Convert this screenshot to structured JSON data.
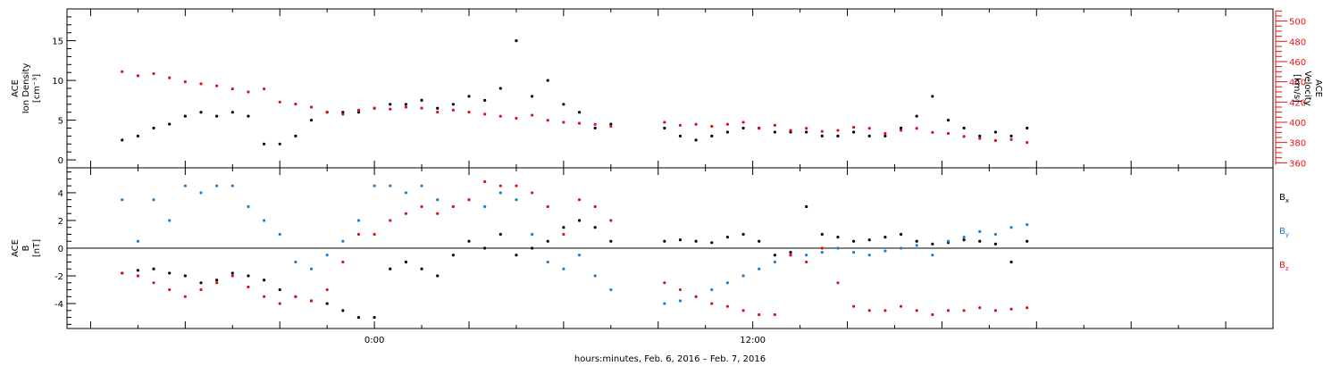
{
  "xaxis": {
    "label": "hours:minutes, Feb.  6, 2016 – Feb.  7, 2016",
    "tick_labels": [
      {
        "hour": 0,
        "text": "0:00"
      },
      {
        "hour": 12,
        "text": "12:00"
      }
    ]
  },
  "chart_data": [
    {
      "type": "scatter",
      "panel": "top",
      "left_axis": {
        "label_lines": [
          "ACE",
          "Ion Density",
          "[cm⁻³]"
        ],
        "ylim": [
          -1,
          19
        ],
        "ticks": [
          0,
          5,
          10,
          15
        ]
      },
      "right_axis": {
        "label_lines": [
          "ACE",
          "Velocity",
          "[km/s]"
        ],
        "ylim": [
          355,
          512
        ],
        "ticks": [
          360,
          380,
          400,
          420,
          440,
          460,
          480,
          500
        ],
        "color": "#e11111"
      },
      "series": [
        {
          "id": "density",
          "color": "#000000",
          "axis": "left",
          "x": [
            -8.0,
            -7.5,
            -7.0,
            -6.5,
            -6.0,
            -5.5,
            -5.0,
            -4.5,
            -4.0,
            -3.5,
            -3.0,
            -2.5,
            -2.0,
            -1.5,
            -1.0,
            -0.5,
            0.0,
            0.5,
            1.0,
            1.5,
            2.0,
            2.5,
            3.0,
            3.5,
            4.0,
            4.5,
            5.0,
            5.5,
            6.0,
            6.5,
            7.0,
            7.5,
            9.2,
            9.7,
            10.2,
            10.7,
            11.2,
            11.7,
            12.2,
            12.7,
            13.2,
            13.7,
            14.2,
            14.7,
            15.2,
            15.7,
            16.2,
            16.7,
            17.2,
            17.7,
            18.2,
            18.7,
            19.2,
            19.7,
            20.2,
            20.7
          ],
          "y": [
            2.5,
            3.0,
            4.0,
            4.5,
            5.5,
            6.0,
            5.5,
            6.0,
            5.5,
            2.0,
            2.0,
            3.0,
            5.0,
            6.0,
            6.0,
            6.0,
            6.5,
            7.0,
            7.0,
            7.5,
            6.5,
            7.0,
            8.0,
            7.5,
            9.0,
            15.0,
            8.0,
            10.0,
            7.0,
            6.0,
            4.0,
            4.5,
            4.0,
            3.0,
            2.5,
            3.0,
            3.5,
            4.0,
            4.0,
            3.5,
            3.5,
            3.5,
            3.0,
            3.0,
            3.5,
            3.0,
            3.0,
            4.0,
            5.5,
            8.0,
            5.0,
            4.0,
            3.0,
            3.5,
            3.0,
            4.0
          ]
        },
        {
          "id": "velocity",
          "color": "#e11111",
          "axis": "right",
          "x": [
            -8.0,
            -7.5,
            -7.0,
            -6.5,
            -6.0,
            -5.5,
            -5.0,
            -4.5,
            -4.0,
            -3.5,
            -3.0,
            -2.5,
            -2.0,
            -1.5,
            -1.0,
            -0.5,
            0.0,
            0.5,
            1.0,
            1.5,
            2.0,
            2.5,
            3.0,
            3.5,
            4.0,
            4.5,
            5.0,
            5.5,
            6.0,
            6.5,
            7.0,
            7.5,
            9.2,
            9.7,
            10.2,
            10.7,
            11.2,
            11.7,
            12.2,
            12.7,
            13.2,
            13.7,
            14.2,
            14.7,
            15.2,
            15.7,
            16.2,
            16.7,
            17.2,
            17.7,
            18.2,
            18.7,
            19.2,
            19.7,
            20.2,
            20.7
          ],
          "y": [
            450,
            446,
            448,
            444,
            440,
            438,
            436,
            433,
            430,
            433,
            420,
            418,
            415,
            410,
            408,
            412,
            414,
            413,
            415,
            414,
            410,
            412,
            410,
            408,
            406,
            404,
            407,
            402,
            400,
            399,
            398,
            396,
            400,
            397,
            398,
            396,
            398,
            400,
            394,
            397,
            392,
            394,
            391,
            392,
            395,
            394,
            389,
            392,
            394,
            390,
            389,
            386,
            384,
            382,
            383,
            380
          ]
        }
      ]
    },
    {
      "type": "scatter",
      "panel": "bottom",
      "left_axis": {
        "label_lines": [
          "ACE",
          "B",
          "[nT]"
        ],
        "ylim": [
          -5.8,
          5.8
        ],
        "ticks": [
          -4,
          -2,
          0,
          2,
          4
        ]
      },
      "legend": {
        "placement": "right",
        "entries": [
          {
            "name": "B",
            "sub": "x",
            "color": "#000000"
          },
          {
            "name": "B",
            "sub": "y",
            "color": "#1a7fd4"
          },
          {
            "name": "B",
            "sub": "z",
            "color": "#e11111"
          }
        ]
      },
      "series": [
        {
          "id": "bx",
          "color": "#000000",
          "x": [
            -8.0,
            -7.5,
            -7.0,
            -6.5,
            -6.0,
            -5.5,
            -5.0,
            -4.5,
            -4.0,
            -3.5,
            -3.0,
            -2.5,
            -2.0,
            -1.5,
            -1.0,
            -0.5,
            0.0,
            0.5,
            1.0,
            1.5,
            2.0,
            2.5,
            3.0,
            3.5,
            4.0,
            4.5,
            5.0,
            5.5,
            6.0,
            6.5,
            7.0,
            7.5,
            9.2,
            9.7,
            10.2,
            10.7,
            11.2,
            11.7,
            12.2,
            12.7,
            13.2,
            13.7,
            14.2,
            14.7,
            15.2,
            15.7,
            16.2,
            16.7,
            17.2,
            17.7,
            18.2,
            18.7,
            19.2,
            19.7,
            20.2,
            20.7
          ],
          "y": [
            -1.8,
            -1.6,
            -1.5,
            -1.8,
            -2.0,
            -2.5,
            -2.3,
            -1.8,
            -2.0,
            -2.3,
            -3.0,
            -3.5,
            -3.8,
            -4.0,
            -4.5,
            -5.0,
            -5.0,
            -1.5,
            -1.0,
            -1.5,
            -2.0,
            -0.5,
            0.5,
            0.0,
            1.0,
            -0.5,
            0.0,
            0.5,
            1.5,
            2.0,
            1.5,
            0.5,
            0.5,
            0.6,
            0.5,
            0.4,
            0.8,
            1.0,
            0.5,
            -0.5,
            -0.3,
            3.0,
            1.0,
            0.8,
            0.5,
            0.6,
            0.8,
            1.0,
            0.5,
            0.3,
            0.4,
            0.6,
            0.5,
            0.3,
            -1.0,
            0.5
          ]
        },
        {
          "id": "by",
          "color": "#1a7fd4",
          "x": [
            -8.0,
            -7.5,
            -7.0,
            -6.5,
            -6.0,
            -5.5,
            -5.0,
            -4.5,
            -4.0,
            -3.5,
            -3.0,
            -2.5,
            -2.0,
            -1.5,
            -1.0,
            -0.5,
            0.0,
            0.5,
            1.0,
            1.5,
            2.0,
            2.5,
            3.0,
            3.5,
            4.0,
            4.5,
            5.0,
            5.5,
            6.0,
            6.5,
            7.0,
            7.5,
            9.2,
            9.7,
            10.2,
            10.7,
            11.2,
            11.7,
            12.2,
            12.7,
            13.2,
            13.7,
            14.2,
            14.7,
            15.2,
            15.7,
            16.2,
            16.7,
            17.2,
            17.7,
            18.2,
            18.7,
            19.2,
            19.7,
            20.2,
            20.7
          ],
          "y": [
            3.5,
            0.5,
            3.5,
            2.0,
            4.5,
            4.0,
            4.5,
            4.5,
            3.0,
            2.0,
            1.0,
            -1.0,
            -1.5,
            -0.5,
            0.5,
            2.0,
            4.5,
            4.5,
            4.0,
            4.5,
            3.5,
            3.0,
            3.5,
            3.0,
            4.0,
            3.5,
            1.0,
            -1.0,
            -1.5,
            -0.5,
            -2.0,
            -3.0,
            -4.0,
            -3.8,
            -3.5,
            -3.0,
            -2.5,
            -2.0,
            -1.5,
            -1.0,
            -0.5,
            -0.5,
            -0.3,
            0.0,
            -0.3,
            -0.5,
            -0.2,
            0.0,
            0.2,
            -0.5,
            0.5,
            0.8,
            1.2,
            1.0,
            1.5,
            1.7
          ]
        },
        {
          "id": "bz",
          "color": "#e11111",
          "x": [
            -8.0,
            -7.5,
            -7.0,
            -6.5,
            -6.0,
            -5.5,
            -5.0,
            -4.5,
            -4.0,
            -3.5,
            -3.0,
            -2.5,
            -2.0,
            -1.5,
            -1.0,
            -0.5,
            0.0,
            0.5,
            1.0,
            1.5,
            2.0,
            2.5,
            3.0,
            3.5,
            4.0,
            4.5,
            5.0,
            5.5,
            6.0,
            6.5,
            7.0,
            7.5,
            9.2,
            9.7,
            10.2,
            10.7,
            11.2,
            11.7,
            12.2,
            12.7,
            13.2,
            13.7,
            14.2,
            14.7,
            15.2,
            15.7,
            16.2,
            16.7,
            17.2,
            17.7,
            18.2,
            18.7,
            19.2,
            19.7,
            20.2,
            20.7
          ],
          "y": [
            -1.8,
            -2.0,
            -2.5,
            -3.0,
            -3.5,
            -3.0,
            -2.5,
            -2.0,
            -2.8,
            -3.5,
            -4.0,
            -3.5,
            -3.8,
            -3.0,
            -1.0,
            1.0,
            1.0,
            2.0,
            2.5,
            3.0,
            2.5,
            3.0,
            3.5,
            4.8,
            4.5,
            4.5,
            4.0,
            3.0,
            1.0,
            3.5,
            3.0,
            2.0,
            -2.5,
            -3.0,
            -3.5,
            -4.0,
            -4.2,
            -4.5,
            -4.8,
            -4.8,
            -0.5,
            -1.0,
            0.0,
            -2.5,
            -4.2,
            -4.5,
            -4.5,
            -4.2,
            -4.5,
            -4.8,
            -4.5,
            -4.5,
            -4.3,
            -4.5,
            -4.4,
            -4.3
          ]
        }
      ]
    }
  ]
}
